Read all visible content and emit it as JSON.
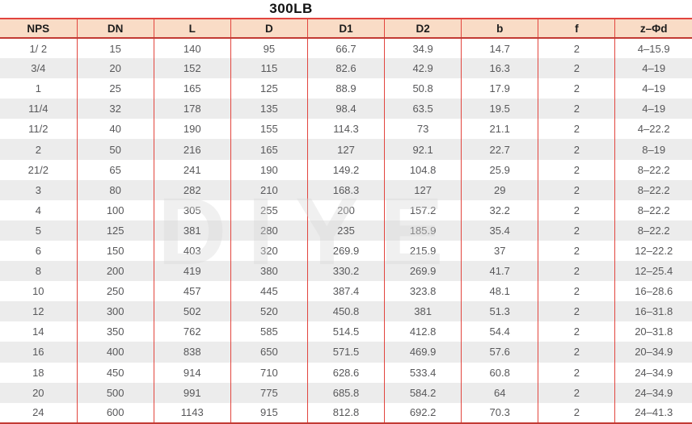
{
  "title": "300LB",
  "watermark_text": "DIYE",
  "colors": {
    "header_bg": "#f9dcc6",
    "border_red": "#e2453e",
    "rule_dark": "#c23b34",
    "row_alt": "#ececec",
    "body_text": "#58585a",
    "header_text": "#1c1c1c",
    "watermark": "#d9d9d9"
  },
  "table": {
    "columns": [
      "NPS",
      "DN",
      "L",
      "D",
      "D1",
      "D2",
      "b",
      "f",
      "z–Φd"
    ],
    "rows": [
      [
        "1/ 2",
        "15",
        "140",
        "95",
        "66.7",
        "34.9",
        "14.7",
        "2",
        "4–15.9"
      ],
      [
        "3/4",
        "20",
        "152",
        "115",
        "82.6",
        "42.9",
        "16.3",
        "2",
        "4–19"
      ],
      [
        "1",
        "25",
        "165",
        "125",
        "88.9",
        "50.8",
        "17.9",
        "2",
        "4–19"
      ],
      [
        "11/4",
        "32",
        "178",
        "135",
        "98.4",
        "63.5",
        "19.5",
        "2",
        "4–19"
      ],
      [
        "11/2",
        "40",
        "190",
        "155",
        "114.3",
        "73",
        "21.1",
        "2",
        "4–22.2"
      ],
      [
        "2",
        "50",
        "216",
        "165",
        "127",
        "92.1",
        "22.7",
        "2",
        "8–19"
      ],
      [
        "21/2",
        "65",
        "241",
        "190",
        "149.2",
        "104.8",
        "25.9",
        "2",
        "8–22.2"
      ],
      [
        "3",
        "80",
        "282",
        "210",
        "168.3",
        "127",
        "29",
        "2",
        "8–22.2"
      ],
      [
        "4",
        "100",
        "305",
        "255",
        "200",
        "157.2",
        "32.2",
        "2",
        "8–22.2"
      ],
      [
        "5",
        "125",
        "381",
        "280",
        "235",
        "185.9",
        "35.4",
        "2",
        "8–22.2"
      ],
      [
        "6",
        "150",
        "403",
        "320",
        "269.9",
        "215.9",
        "37",
        "2",
        "12–22.2"
      ],
      [
        "8",
        "200",
        "419",
        "380",
        "330.2",
        "269.9",
        "41.7",
        "2",
        "12–25.4"
      ],
      [
        "10",
        "250",
        "457",
        "445",
        "387.4",
        "323.8",
        "48.1",
        "2",
        "16–28.6"
      ],
      [
        "12",
        "300",
        "502",
        "520",
        "450.8",
        "381",
        "51.3",
        "2",
        "16–31.8"
      ],
      [
        "14",
        "350",
        "762",
        "585",
        "514.5",
        "412.8",
        "54.4",
        "2",
        "20–31.8"
      ],
      [
        "16",
        "400",
        "838",
        "650",
        "571.5",
        "469.9",
        "57.6",
        "2",
        "20–34.9"
      ],
      [
        "18",
        "450",
        "914",
        "710",
        "628.6",
        "533.4",
        "60.8",
        "2",
        "24–34.9"
      ],
      [
        "20",
        "500",
        "991",
        "775",
        "685.8",
        "584.2",
        "64",
        "2",
        "24–34.9"
      ],
      [
        "24",
        "600",
        "1143",
        "915",
        "812.8",
        "692.2",
        "70.3",
        "2",
        "24–41.3"
      ]
    ]
  }
}
